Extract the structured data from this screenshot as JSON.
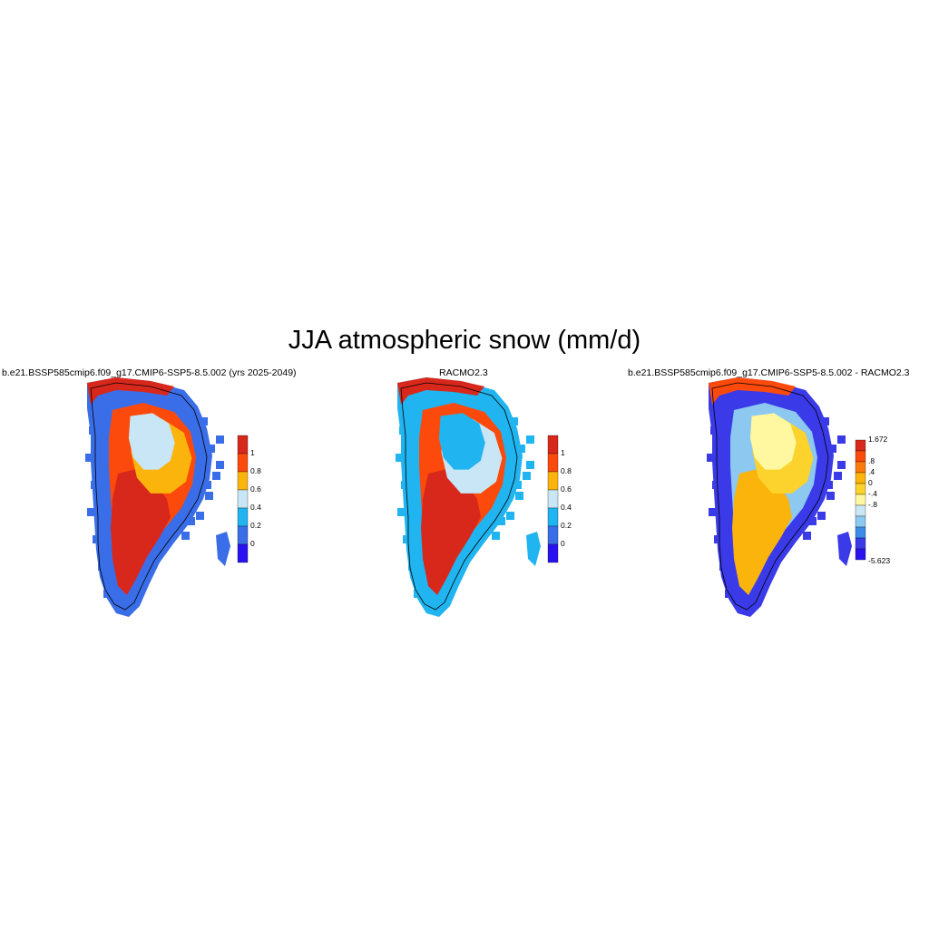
{
  "title": "JJA atmospheric snow (mm/d)",
  "panels": [
    {
      "id": "model",
      "title": "b.e21.BSSP585cmip6.f09_g17.CMIP6-SSP5-8.5.002 (yrs 2025-2049)",
      "colorbar": {
        "labels": [
          "1",
          "0.8",
          "0.6",
          "0.4",
          "0.2",
          "0"
        ],
        "colors": [
          "#2a12f0",
          "#3a6ee8",
          "#20b4f0",
          "#c8e6f5",
          "#fbb40b",
          "#fc4a0c",
          "#d8281c"
        ]
      },
      "regions": {
        "interior": "#c8e6f5",
        "ring": "#fbb40b",
        "outer": "#fc4a0c",
        "south": "#d8281c",
        "edge": "#3a6ee8",
        "tip": "#d8281c"
      }
    },
    {
      "id": "obs",
      "title": "RACMO2.3",
      "colorbar": {
        "labels": [
          "1",
          "0.8",
          "0.6",
          "0.4",
          "0.2",
          "0"
        ],
        "colors": [
          "#2a12f0",
          "#3a6ee8",
          "#20b4f0",
          "#c8e6f5",
          "#fbb40b",
          "#fc4a0c",
          "#d8281c"
        ]
      },
      "regions": {
        "interior": "#20b4f0",
        "ring": "#c8e6f5",
        "outer": "#fc4a0c",
        "south": "#d8281c",
        "edge": "#20b4f0",
        "tip": "#d8281c"
      }
    },
    {
      "id": "diff",
      "title": "b.e21.BSSP585cmip6.f09_g17.CMIP6-SSP5-8.5.002 - RACMO2.3",
      "colorbar": {
        "top_label": "1.672",
        "labels": [
          ".8",
          ".4",
          "0",
          "-.4",
          "-.8"
        ],
        "bottom_label": "-5.623",
        "colors": [
          "#2a12f0",
          "#3a3ae8",
          "#3a8ce8",
          "#8cc8f0",
          "#c8e6f5",
          "#fff8a0",
          "#fcd22c",
          "#fbb40b",
          "#fc7a0c",
          "#fc4a0c",
          "#d8281c"
        ]
      },
      "regions": {
        "interior": "#fff8a0",
        "ring": "#fcd22c",
        "outer": "#8cc8f0",
        "south": "#fbb40b",
        "edge": "#3a3ae8",
        "tip": "#fc4a0c"
      }
    }
  ]
}
